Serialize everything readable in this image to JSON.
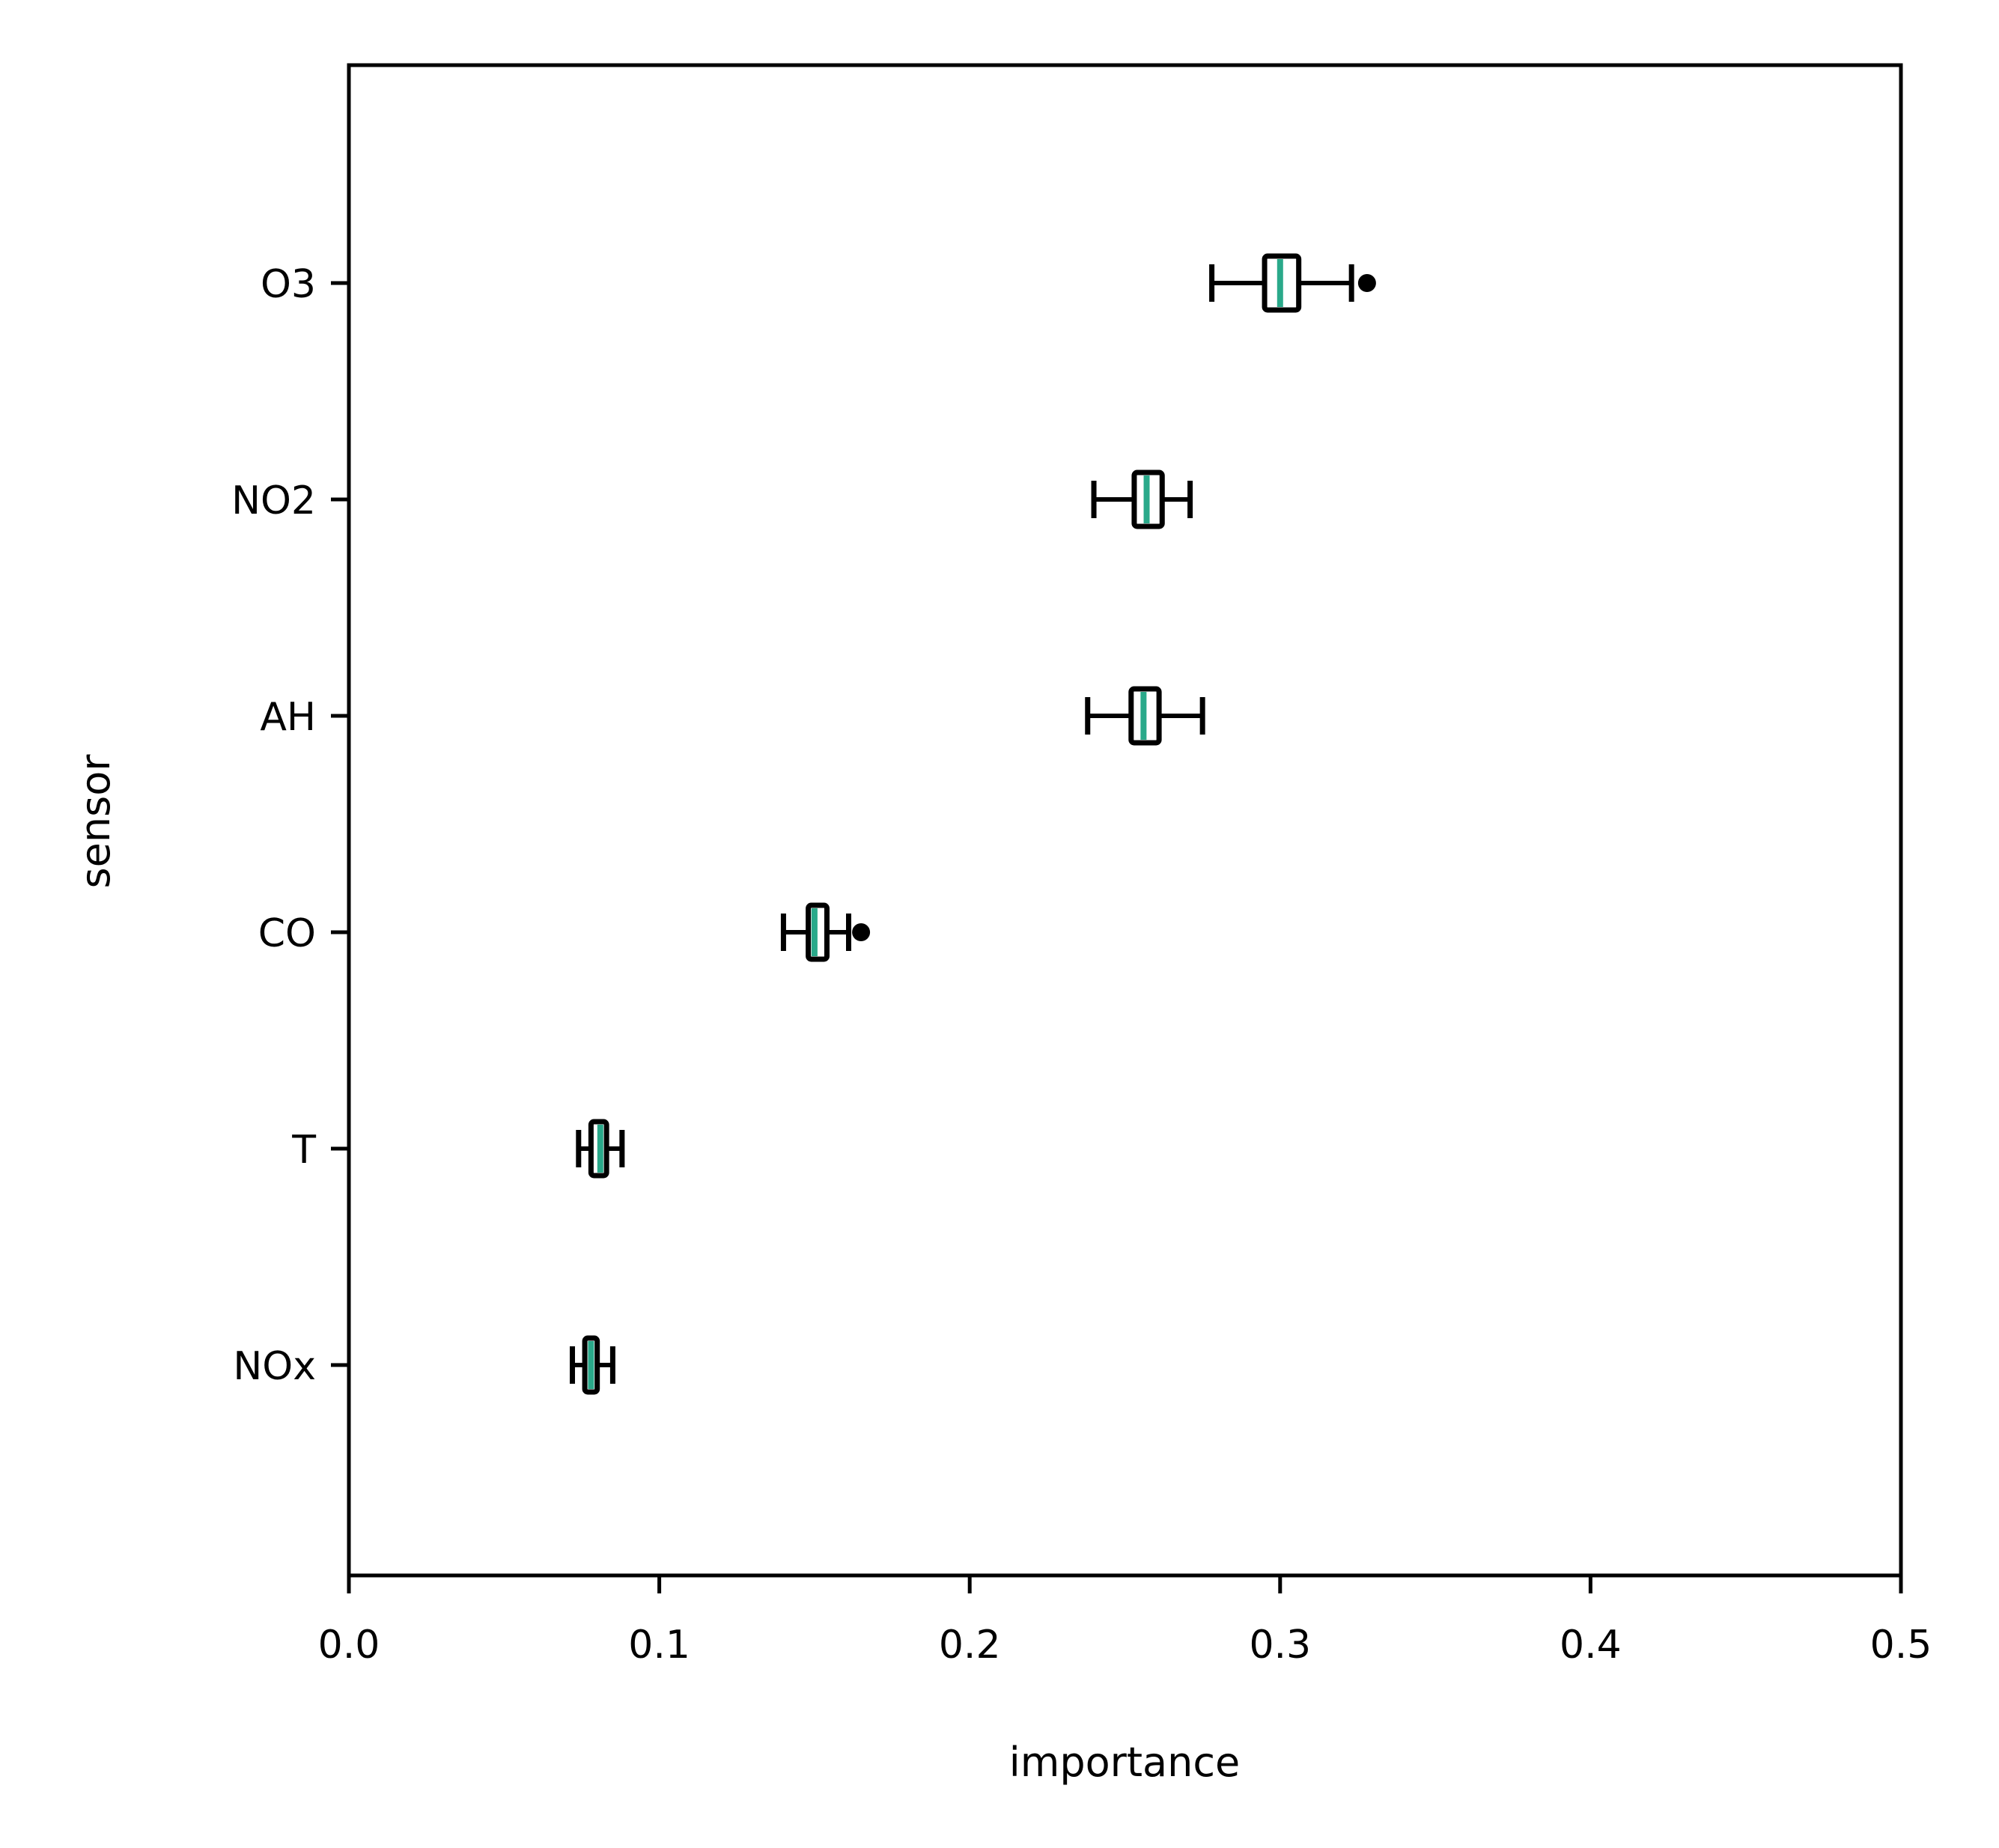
{
  "chart_data": {
    "type": "box",
    "orientation": "horizontal",
    "title": "",
    "xlabel": "importance",
    "ylabel": "sensor",
    "xlim": [
      0.0,
      0.5
    ],
    "xticks": [
      "0.0",
      "0.1",
      "0.2",
      "0.3",
      "0.4",
      "0.5"
    ],
    "xtick_values": [
      0.0,
      0.1,
      0.2,
      0.3,
      0.4,
      0.5
    ],
    "categories": [
      "O3",
      "NO2",
      "AH",
      "CO",
      "T",
      "NOx"
    ],
    "grid": false,
    "colors": {
      "median": "#2aa98a",
      "box": "#000000"
    },
    "boxes": [
      {
        "category": "O3",
        "whisker_low": 0.278,
        "q1": 0.295,
        "median": 0.3,
        "q3": 0.306,
        "whisker_high": 0.323,
        "outliers": [
          0.328
        ]
      },
      {
        "category": "NO2",
        "whisker_low": 0.24,
        "q1": 0.253,
        "median": 0.257,
        "q3": 0.262,
        "whisker_high": 0.271,
        "outliers": []
      },
      {
        "category": "AH",
        "whisker_low": 0.238,
        "q1": 0.252,
        "median": 0.256,
        "q3": 0.261,
        "whisker_high": 0.275,
        "outliers": []
      },
      {
        "category": "CO",
        "whisker_low": 0.14,
        "q1": 0.148,
        "median": 0.15,
        "q3": 0.154,
        "whisker_high": 0.161,
        "outliers": [
          0.165
        ]
      },
      {
        "category": "T",
        "whisker_low": 0.074,
        "q1": 0.078,
        "median": 0.081,
        "q3": 0.083,
        "whisker_high": 0.088,
        "outliers": []
      },
      {
        "category": "NOx",
        "whisker_low": 0.072,
        "q1": 0.076,
        "median": 0.078,
        "q3": 0.08,
        "whisker_high": 0.085,
        "outliers": []
      }
    ]
  }
}
